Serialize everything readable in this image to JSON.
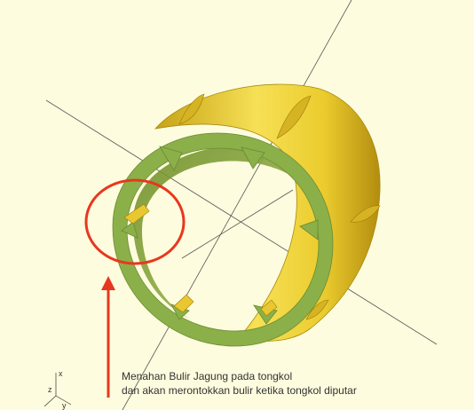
{
  "annotation": {
    "line1": "Menahan Bulir Jagung pada tongkol",
    "line2": "dan akan merontokkan bulir ketika tongkol diputar",
    "highlight_color": "#e8371f"
  },
  "model": {
    "outer_color": "#f0d640",
    "inner_color": "#8bb04a",
    "background": "#fefcde"
  },
  "axes_gizmo": {
    "x_label": "x",
    "y_label": "y",
    "z_label": "z"
  }
}
